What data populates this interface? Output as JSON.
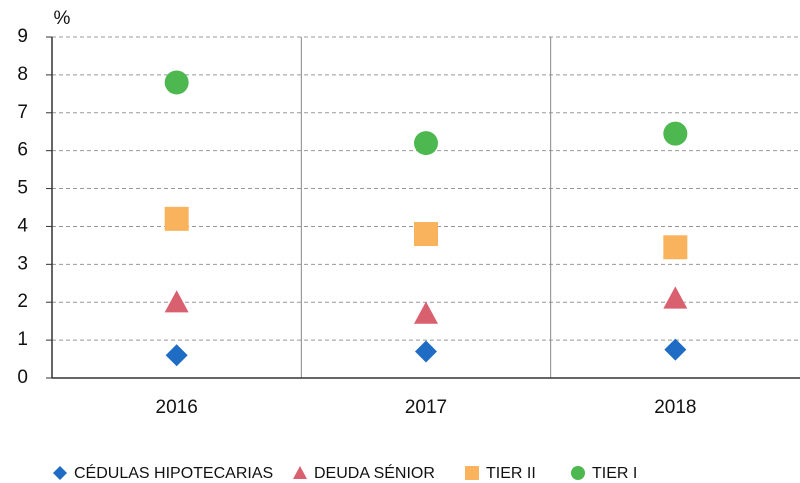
{
  "chart_data": {
    "type": "scatter",
    "y_label": "%",
    "categories": [
      "2016",
      "2017",
      "2018"
    ],
    "series": [
      {
        "name": "CÉDULAS HIPOTECARIAS",
        "color": "#1f6cc4",
        "marker": "diamond",
        "values": [
          0.6,
          0.7,
          0.75
        ]
      },
      {
        "name": "DEUDA SÉNIOR",
        "color": "#d9606f",
        "marker": "triangle",
        "values": [
          2.0,
          1.7,
          2.1
        ]
      },
      {
        "name": "TIER II",
        "color": "#f9b35c",
        "marker": "square",
        "values": [
          4.2,
          3.8,
          3.45
        ]
      },
      {
        "name": "TIER I",
        "color": "#4cb84f",
        "marker": "circle",
        "values": [
          7.8,
          6.2,
          6.45
        ]
      }
    ],
    "ylim": [
      0,
      9
    ],
    "yticks": [
      0,
      1,
      2,
      3,
      4,
      5,
      6,
      7,
      8,
      9
    ],
    "grid": true,
    "legend": "bottom"
  }
}
